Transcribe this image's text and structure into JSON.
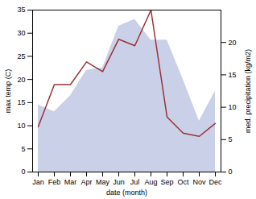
{
  "chart_data": {
    "type": "area",
    "categories": [
      "Jan",
      "Feb",
      "Mar",
      "Apr",
      "May",
      "Jun",
      "Jul",
      "Aug",
      "Sep",
      "Oct",
      "Nov",
      "Dec"
    ],
    "xlabel": "date (month)",
    "ylabel": "max temp (C)",
    "y2label": "med. precipitation (kg/m2)",
    "ylim": [
      0,
      35
    ],
    "yticks": [
      0,
      5,
      10,
      15,
      20,
      25,
      30,
      35
    ],
    "y2lim": [
      0,
      25
    ],
    "y2ticks": [
      0,
      5,
      10,
      15,
      20
    ],
    "series": [
      {
        "type": "area",
        "color": "#b8c0e0",
        "values": [
          14.5,
          13.0,
          16.5,
          22.0,
          22.5,
          31.5,
          33.0,
          28.5,
          28.5,
          20.0,
          11.0,
          17.5
        ]
      },
      {
        "type": "line",
        "color": "#993333",
        "axis": "y2",
        "values": [
          7.0,
          13.5,
          13.5,
          17.0,
          15.5,
          20.5,
          19.5,
          25.0,
          8.5,
          6.0,
          5.5,
          7.5
        ]
      }
    ]
  }
}
